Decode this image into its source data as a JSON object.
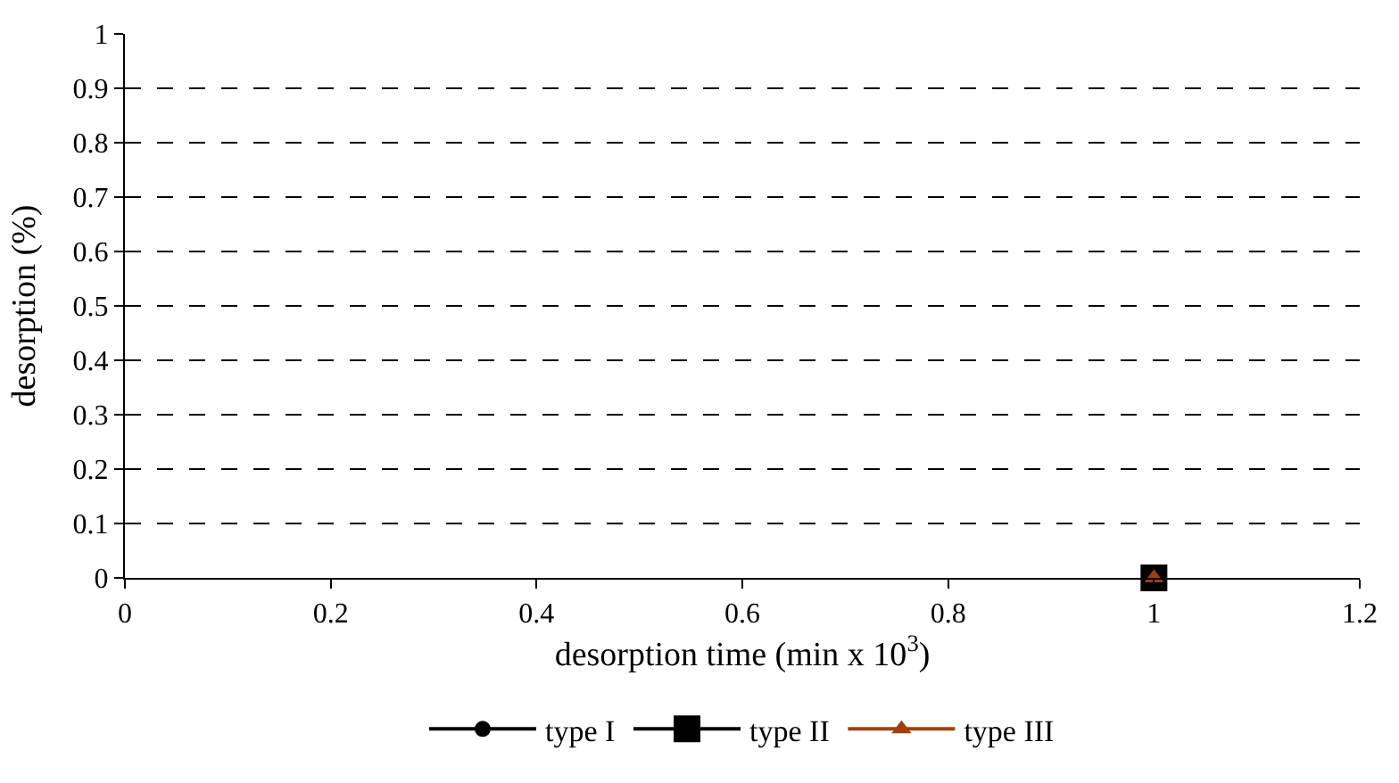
{
  "chart_data": {
    "type": "line",
    "xlabel": "desorption time (min x 10$^{3}$)",
    "ylabel": "desorption (%)",
    "series": [
      {
        "name": "type I",
        "color": "#000000",
        "marker": "circle"
      },
      {
        "name": "type II",
        "color": "#000000",
        "marker": "square",
        "x": [
          1
        ],
        "values": [
          0
        ]
      },
      {
        "name": "type III",
        "color": "#a0400f",
        "marker": "triangle",
        "x": [
          1
        ],
        "values": [
          0
        ]
      }
    ],
    "xlim": [
      0,
      1.2
    ],
    "xticks": [
      0,
      0.2,
      0.4,
      0.6,
      0.8,
      1,
      1.2
    ],
    "ylim": [
      0,
      1
    ],
    "yticks": [
      0,
      0.1,
      0.2,
      0.3,
      0.4,
      0.5,
      0.6,
      0.7,
      0.8,
      0.9,
      1
    ],
    "grid": "y",
    "legend": "bottom",
    "line_style": "solid"
  }
}
